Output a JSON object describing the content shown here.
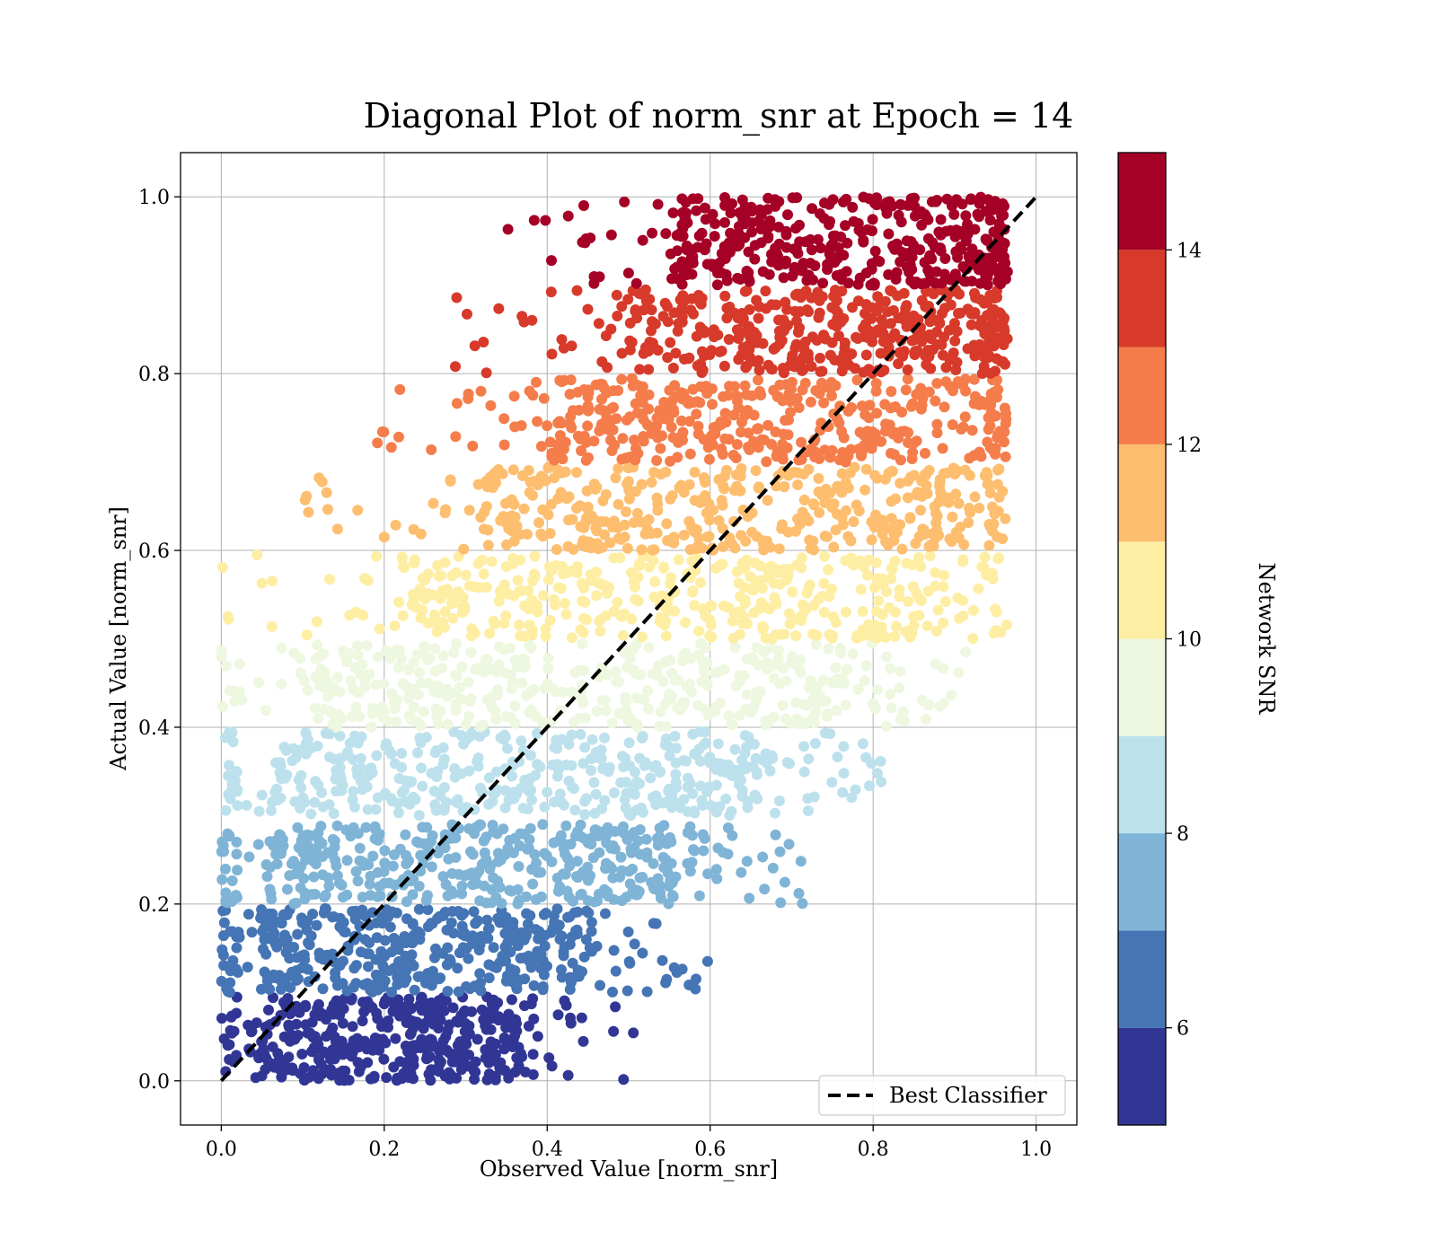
{
  "chart_data": {
    "type": "scatter",
    "title": "Diagonal Plot of norm_snr at Epoch = 14",
    "xlabel": "Observed Value [norm_snr]",
    "ylabel": "Actual Value [norm_snr]",
    "xlim": [
      -0.05,
      1.05
    ],
    "ylim": [
      -0.05,
      1.05
    ],
    "xticks": [
      0.0,
      0.2,
      0.4,
      0.6,
      0.8,
      1.0
    ],
    "yticks": [
      0.0,
      0.2,
      0.4,
      0.6,
      0.8,
      1.0
    ],
    "xtick_labels": [
      "0.0",
      "0.2",
      "0.4",
      "0.6",
      "0.8",
      "1.0"
    ],
    "ytick_labels": [
      "0.0",
      "0.2",
      "0.4",
      "0.6",
      "0.8",
      "1.0"
    ],
    "grid": true,
    "legend": {
      "placement": "lower-right",
      "entries": [
        "Best Classifier"
      ]
    },
    "reference_line": {
      "name": "Best Classifier",
      "style": "dashed",
      "color": "#000000",
      "x": [
        0.0,
        1.0
      ],
      "y": [
        0.0,
        1.0
      ]
    },
    "colorbar": {
      "label": "Network SNR",
      "range": [
        5,
        15
      ],
      "ticks": [
        6,
        8,
        10,
        12,
        14
      ],
      "tick_labels": [
        "6",
        "8",
        "10",
        "12",
        "14"
      ],
      "colors": [
        "#313695",
        "#4575b4",
        "#7fb4d6",
        "#bde1ec",
        "#eef7df",
        "#feeea3",
        "#fdbe70",
        "#f47d4b",
        "#d73a2a",
        "#a50026"
      ]
    },
    "bands": [
      {
        "snr_range": [
          5,
          6
        ],
        "y_range": [
          0.0,
          0.095
        ],
        "core_x": [
          0.05,
          0.36
        ],
        "color": "#313695"
      },
      {
        "snr_range": [
          6,
          7
        ],
        "y_range": [
          0.1,
          0.195
        ],
        "core_x": [
          0.05,
          0.45
        ],
        "color": "#4575b4"
      },
      {
        "snr_range": [
          7,
          8
        ],
        "y_range": [
          0.2,
          0.29
        ],
        "core_x": [
          0.06,
          0.56
        ],
        "color": "#7fb4d6"
      },
      {
        "snr_range": [
          8,
          9
        ],
        "y_range": [
          0.3,
          0.395
        ],
        "core_x": [
          0.07,
          0.66
        ],
        "color": "#bde1ec"
      },
      {
        "snr_range": [
          9,
          10
        ],
        "y_range": [
          0.4,
          0.495
        ],
        "core_x": [
          0.12,
          0.76
        ],
        "color": "#eef7df"
      },
      {
        "snr_range": [
          10,
          11
        ],
        "y_range": [
          0.5,
          0.595
        ],
        "core_x": [
          0.22,
          0.85
        ],
        "color": "#feeea3"
      },
      {
        "snr_range": [
          11,
          12
        ],
        "y_range": [
          0.6,
          0.695
        ],
        "core_x": [
          0.32,
          0.9
        ],
        "color": "#fdbe70"
      },
      {
        "snr_range": [
          12,
          13
        ],
        "y_range": [
          0.7,
          0.795
        ],
        "core_x": [
          0.4,
          0.93
        ],
        "color": "#f47d4b"
      },
      {
        "snr_range": [
          13,
          14
        ],
        "y_range": [
          0.8,
          0.895
        ],
        "core_x": [
          0.5,
          0.95
        ],
        "color": "#d73a2a"
      },
      {
        "snr_range": [
          14,
          15
        ],
        "y_range": [
          0.9,
          1.0
        ],
        "core_x": [
          0.56,
          0.96
        ],
        "color": "#a50026"
      }
    ]
  }
}
